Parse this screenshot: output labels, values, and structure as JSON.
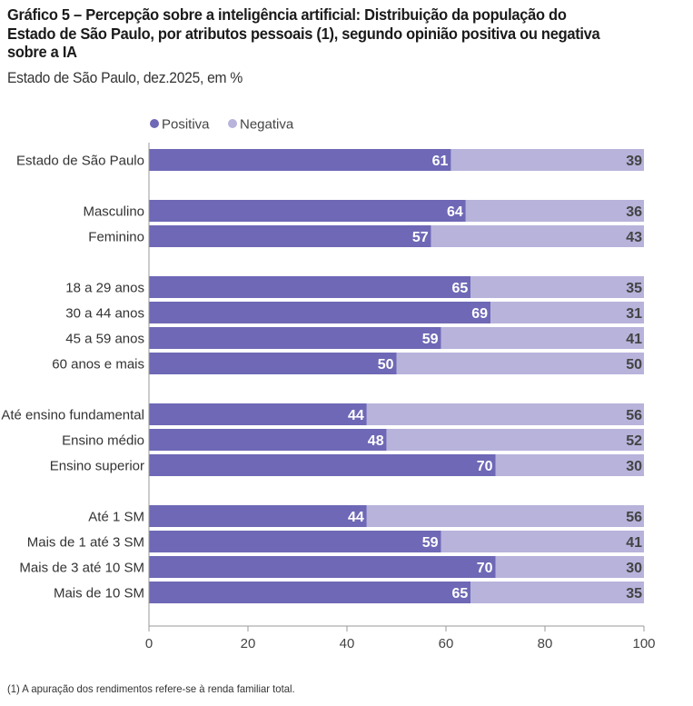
{
  "title": "Gráfico 5 – Percepção sobre a inteligência artificial: Distribuição da população do Estado de São Paulo, por atributos pessoais (1), segundo opinião positiva ou negativa sobre a IA",
  "subtitle": "Estado de São Paulo, dez.2025, em %",
  "footnote": "(1) A apuração dos rendimentos refere-se à renda familiar total.",
  "colors": {
    "positiva": "#6e68b6",
    "negativa": "#b7b3db",
    "axis": "#999999",
    "label_dark": "#444444"
  },
  "chart_data": {
    "type": "bar",
    "orientation": "horizontal",
    "stacked": true,
    "title": "Gráfico 5 – Percepção sobre a inteligência artificial: Distribuição da população do Estado de São Paulo, por atributos pessoais (1), segundo opinião positiva ou negativa sobre a IA",
    "xlabel": "",
    "ylabel": "",
    "xlim": [
      0,
      100
    ],
    "xticks": [
      "0",
      "20",
      "40",
      "60",
      "80",
      "100"
    ],
    "grid": false,
    "legend_position": "top",
    "groups": [
      [
        "Estado de São Paulo"
      ],
      [
        "Masculino",
        "Feminino"
      ],
      [
        "18 a 29 anos",
        "30 a 44 anos",
        "45 a 59 anos",
        "60 anos e mais"
      ],
      [
        "Até ensino fundamental",
        "Ensino médio",
        "Ensino superior"
      ],
      [
        "Até 1 SM",
        "Mais de 1 até 3 SM",
        "Mais de 3 até 10 SM",
        "Mais de 10 SM"
      ]
    ],
    "categories": [
      "Estado de São Paulo",
      "Masculino",
      "Feminino",
      "18 a 29 anos",
      "30 a 44 anos",
      "45 a 59 anos",
      "60 anos e mais",
      "Até ensino fundamental",
      "Ensino médio",
      "Ensino superior",
      "Até 1 SM",
      "Mais de 1 até 3 SM",
      "Mais de 3 até 10 SM",
      "Mais de 10 SM"
    ],
    "series": [
      {
        "name": "Positiva",
        "values": [
          61,
          64,
          57,
          65,
          69,
          59,
          50,
          44,
          48,
          70,
          44,
          59,
          70,
          65
        ]
      },
      {
        "name": "Negativa",
        "values": [
          39,
          36,
          43,
          35,
          31,
          41,
          50,
          56,
          52,
          30,
          56,
          41,
          30,
          35
        ]
      }
    ]
  }
}
